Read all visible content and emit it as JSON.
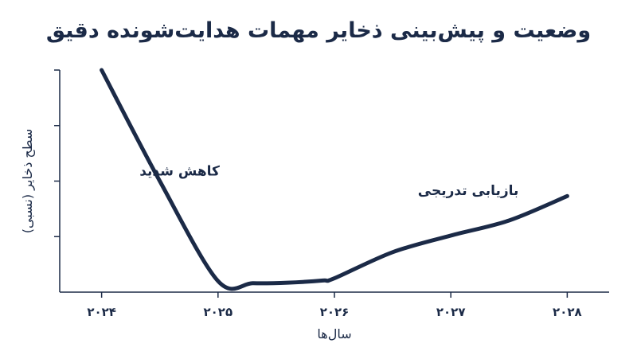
{
  "chart_data": {
    "type": "line",
    "title": "وضعیت و پیش‌بینی ذخایر مهمات هدایت‌شونده دقیق",
    "xlabel": "سال‌ها",
    "ylabel": "سطح ذخایر (نسبی)",
    "x_ticks": [
      "۲۰۲۴",
      "۲۰۲۵",
      "۲۰۲۶",
      "۲۰۲۷",
      "۲۰۲۸"
    ],
    "xlim": [
      2023.64,
      2028.36
    ],
    "ylim": [
      0,
      4
    ],
    "y_ticks": [
      1,
      2,
      3,
      4
    ],
    "y_tick_labels_shown": false,
    "grid": false,
    "line_color": "#1b2a47",
    "series": [
      {
        "x": [
          2024.0,
          2024.5,
          2025.0,
          2025.3,
          2025.6,
          2025.9,
          2026.0,
          2026.5,
          2027.0,
          2027.5,
          2028.0
        ],
        "y": [
          4.0,
          2.0,
          0.2,
          0.16,
          0.17,
          0.21,
          0.25,
          0.72,
          1.02,
          1.29,
          1.73
        ]
      }
    ],
    "annotations": [
      {
        "text": "کاهش شدید",
        "x": 2024.67,
        "y": 2.1
      },
      {
        "text": "بازیابی تدریجی",
        "x": 2027.15,
        "y": 1.75
      }
    ]
  }
}
